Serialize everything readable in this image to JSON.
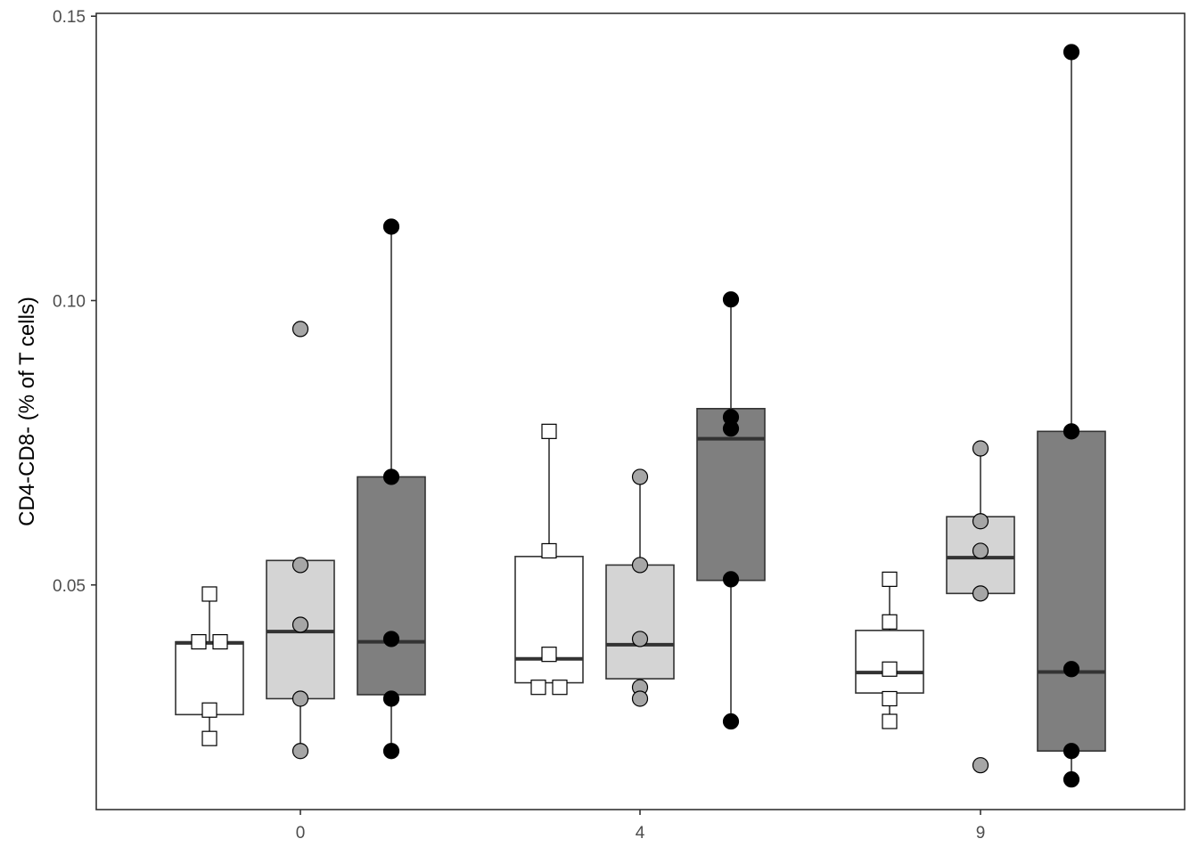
{
  "chart_data": {
    "type": "box",
    "title": "",
    "xlabel": "",
    "ylabel": "CD4-CD8- (% of T cells)",
    "ylim": [
      0.0105,
      0.1505
    ],
    "y_ticks": [
      0.05,
      0.1,
      0.15
    ],
    "y_tick_labels": [
      "0.05",
      "0.10",
      "0.15"
    ],
    "categories": [
      "0",
      "4",
      "9"
    ],
    "grid": false,
    "legend": "none",
    "series": [
      {
        "style": {
          "fill": "#ffffff",
          "marker": "square",
          "marker_fill": "#ffffff"
        },
        "groups": [
          {
            "q1": 0.0272,
            "median": 0.0398,
            "q3": 0.04,
            "whisker_low": 0.023,
            "whisker_high": 0.0484,
            "points": [
              0.0484,
              0.04,
              0.04,
              0.028,
              0.023
            ]
          },
          {
            "q1": 0.0328,
            "median": 0.037,
            "q3": 0.055,
            "whisker_low": 0.0328,
            "whisker_high": 0.077,
            "points": [
              0.077,
              0.056,
              0.0378,
              0.032,
              0.032
            ]
          },
          {
            "q1": 0.031,
            "median": 0.0346,
            "q3": 0.042,
            "whisker_low": 0.026,
            "whisker_high": 0.051,
            "points": [
              0.051,
              0.0435,
              0.0352,
              0.03,
              0.026
            ]
          }
        ]
      },
      {
        "style": {
          "fill": "#d4d4d4",
          "marker": "circle",
          "marker_fill": "#a6a6a6"
        },
        "groups": [
          {
            "q1": 0.03,
            "median": 0.0418,
            "q3": 0.0543,
            "whisker_low": 0.0208,
            "whisker_high": 0.0543,
            "points": [
              0.095,
              0.0535,
              0.043,
              0.03,
              0.0208
            ]
          },
          {
            "q1": 0.0335,
            "median": 0.0395,
            "q3": 0.0535,
            "whisker_low": 0.0335,
            "whisker_high": 0.069,
            "points": [
              0.069,
              0.0535,
              0.0405,
              0.032,
              0.03
            ]
          },
          {
            "q1": 0.0485,
            "median": 0.0548,
            "q3": 0.062,
            "whisker_low": 0.0485,
            "whisker_high": 0.074,
            "points": [
              0.074,
              0.0612,
              0.056,
              0.0485,
              0.0183
            ]
          }
        ]
      },
      {
        "style": {
          "fill": "#7f7f7f",
          "marker": "circle",
          "marker_fill": "#000000"
        },
        "groups": [
          {
            "q1": 0.0307,
            "median": 0.04,
            "q3": 0.069,
            "whisker_low": 0.0208,
            "whisker_high": 0.113,
            "points": [
              0.113,
              0.069,
              0.0405,
              0.03,
              0.0208
            ]
          },
          {
            "q1": 0.0508,
            "median": 0.0757,
            "q3": 0.081,
            "whisker_low": 0.026,
            "whisker_high": 0.1002,
            "points": [
              0.1002,
              0.0795,
              0.0775,
              0.051,
              0.026
            ]
          },
          {
            "q1": 0.0208,
            "median": 0.0347,
            "q3": 0.077,
            "whisker_low": 0.0158,
            "whisker_high": 0.1437,
            "points": [
              0.1437,
              0.077,
              0.0352,
              0.0208,
              0.0158
            ]
          }
        ]
      }
    ]
  }
}
